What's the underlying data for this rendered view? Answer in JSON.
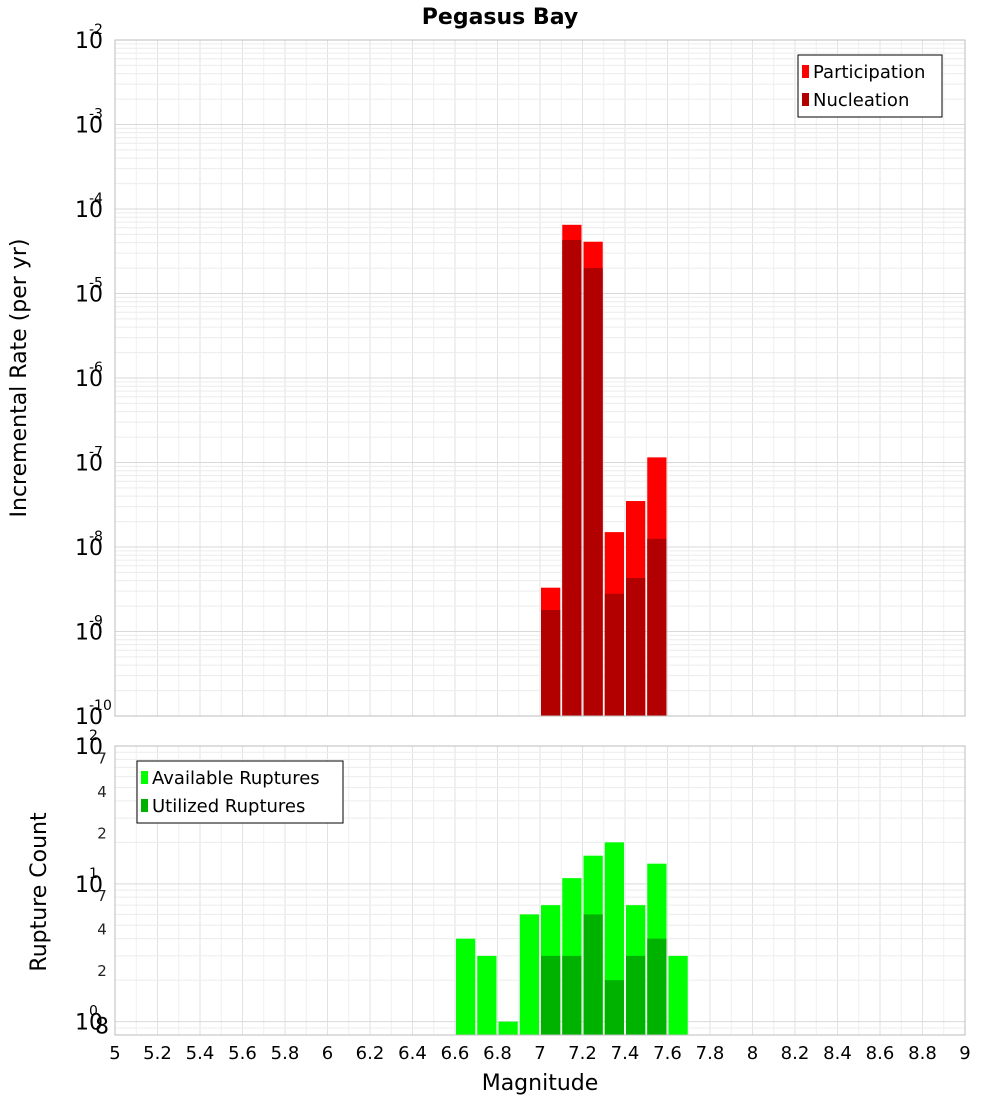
{
  "chart_data": [
    {
      "type": "bar",
      "title": "Pegasus Bay",
      "xlabel": "",
      "ylabel": "Incremental Rate (per yr)",
      "y_scale": "log",
      "ylim": [
        1e-10,
        0.01
      ],
      "xlim": [
        5,
        9
      ],
      "y_tick_labels": [
        {
          "base": "10",
          "exp": "-10"
        },
        {
          "base": "10",
          "exp": "-9"
        },
        {
          "base": "10",
          "exp": "-8"
        },
        {
          "base": "10",
          "exp": "-7"
        },
        {
          "base": "10",
          "exp": "-6"
        },
        {
          "base": "10",
          "exp": "-5"
        },
        {
          "base": "10",
          "exp": "-4"
        },
        {
          "base": "10",
          "exp": "-3"
        },
        {
          "base": "10",
          "exp": "-2"
        }
      ],
      "legend_position": "top-right",
      "grid": true,
      "series": [
        {
          "name": "Participation",
          "color": "#ff0000",
          "x": [
            7.0,
            7.1,
            7.2,
            7.3,
            7.4,
            7.5
          ],
          "values": [
            3.3e-09,
            6.5e-05,
            4.1e-05,
            1.5e-08,
            3.5e-08,
            1.15e-07
          ]
        },
        {
          "name": "Nucleation",
          "color": "#b20000",
          "x": [
            7.0,
            7.1,
            7.2,
            7.3,
            7.4,
            7.5
          ],
          "values": [
            1.8e-09,
            4.3e-05,
            2e-05,
            2.8e-09,
            4.3e-09,
            1.25e-08
          ]
        }
      ]
    },
    {
      "type": "bar",
      "title": "",
      "xlabel": "Magnitude",
      "ylabel": "Rupture Count",
      "y_scale": "log",
      "ylim": [
        0.8,
        100
      ],
      "xlim": [
        5,
        9
      ],
      "x_tick_labels": [
        "5",
        "5.2",
        "5.4",
        "5.6",
        "5.8",
        "6",
        "6.2",
        "6.4",
        "6.6",
        "6.8",
        "7",
        "7.2",
        "7.4",
        "7.6",
        "7.8",
        "8",
        "8.2",
        "8.4",
        "8.6",
        "8.8",
        "9"
      ],
      "y_tick_labels": [
        {
          "base": "10",
          "exp": "0",
          "minor": "8"
        },
        {
          "base": "10",
          "exp": "1"
        },
        {
          "base": "10",
          "exp": "2"
        }
      ],
      "y_minor_labels": [
        {
          "label": "2",
          "value": 2
        },
        {
          "label": "4",
          "value": 4
        },
        {
          "label": "7",
          "value": 7
        },
        {
          "label": "2",
          "value": 20
        },
        {
          "label": "4",
          "value": 40
        },
        {
          "label": "7",
          "value": 70
        }
      ],
      "legend_position": "top-left",
      "grid": true,
      "series": [
        {
          "name": "Available Ruptures",
          "color": "#00ff00",
          "x": [
            6.6,
            6.7,
            6.8,
            6.9,
            7.0,
            7.1,
            7.2,
            7.3,
            7.4,
            7.5,
            7.6
          ],
          "values": [
            4,
            3,
            1,
            6,
            7,
            11,
            16,
            20,
            7,
            14,
            3
          ]
        },
        {
          "name": "Utilized Ruptures",
          "color": "#00b200",
          "x": [
            7.0,
            7.1,
            7.2,
            7.3,
            7.4,
            7.5
          ],
          "values": [
            3,
            3,
            6,
            2,
            3,
            4
          ]
        }
      ]
    }
  ]
}
